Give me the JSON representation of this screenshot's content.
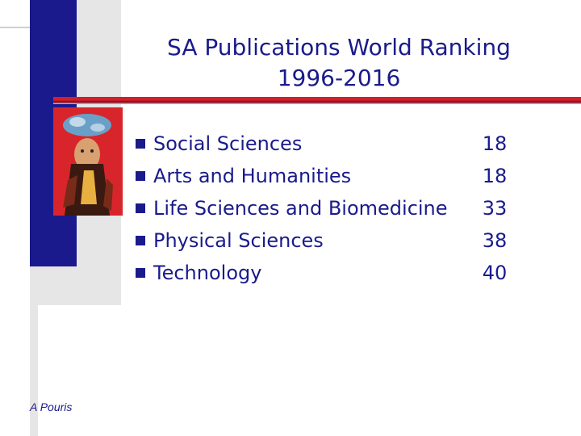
{
  "slide": {
    "title_line1": "SA Publications World Ranking",
    "title_line2": "1996-2016",
    "image": "illustrated-figure-picture",
    "rows": [
      {
        "label": "Social Sciences",
        "value": "18"
      },
      {
        "label": "Arts and Humanities",
        "value": "18"
      },
      {
        "label": "Life Sciences and Biomedicine",
        "value": "33"
      },
      {
        "label": "Physical Sciences",
        "value": "38"
      },
      {
        "label": "Technology",
        "value": "40"
      }
    ],
    "footer": "A Pouris"
  },
  "colors": {
    "text": "#1a1a8c",
    "accent_rule": "#d21f2a",
    "side_bar": "#1a1a8c",
    "panel": "#e6e6e6"
  }
}
